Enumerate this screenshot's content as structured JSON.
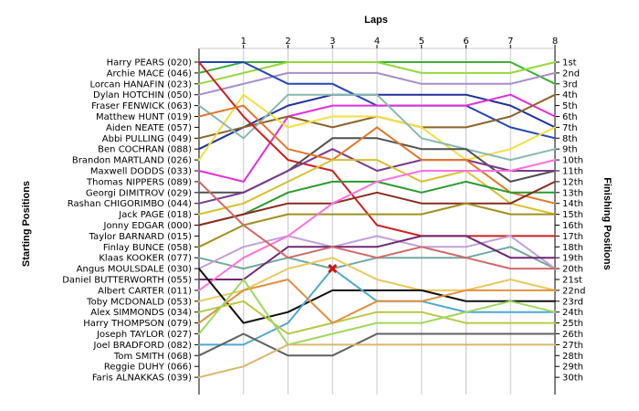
{
  "chart_data": {
    "type": "line",
    "title": "Laps",
    "ylabel_left": "Starting Positions",
    "ylabel_right": "Finishing Positions",
    "x": [
      0,
      1,
      2,
      3,
      4,
      5,
      6,
      7,
      8
    ],
    "x_tick_labels": [
      "1",
      "2",
      "3",
      "4",
      "5",
      "6",
      "7",
      "8"
    ],
    "starting_positions": [
      "Harry PEARS (020)",
      "Archie MACE (046)",
      "Lorcan HANAFIN (023)",
      "Dylan HOTCHIN (050)",
      "Fraser FENWICK (063)",
      "Matthew HUNT (019)",
      "Aiden NEATE (057)",
      "Abbi PULLING (049)",
      "Ben COCHRAN (088)",
      "Brandon MARTLAND (026)",
      "Maxwell DODDS (033)",
      "Thomas NIPPERS (089)",
      "Georgi DIMITROV (029)",
      "Rashan CHIGORIMBO (044)",
      "Jack PAGE (018)",
      "Jonny EDGAR (000)",
      "Taylor BARNARD (015)",
      "Finlay BUNCE (058)",
      "Klaas KOOKER (077)",
      "Angus MOULSDALE (030)",
      "Daniel BUTTERWORTH (055)",
      "Albert CARTER (011)",
      "Toby MCDONALD (053)",
      "Alex SIMMONDS (034)",
      "Harry THOMPSON (079)",
      "Joseph TAYLOR (027)",
      "Joel BRADFORD (082)",
      "Tom SMITH (068)",
      "Reggie DUHY (066)",
      "Faris ALNAKKAS (039)"
    ],
    "finishing_positions": [
      "1st",
      "2nd",
      "3rd",
      "4th",
      "5th",
      "6th",
      "7th",
      "8th",
      "9th",
      "10th",
      "11th",
      "12th",
      "13th",
      "14th",
      "15th",
      "16th",
      "17th",
      "18th",
      "19th",
      "20th",
      "21st",
      "22nd",
      "23rd",
      "24th",
      "25th",
      "26th",
      "27th",
      "28th",
      "29th",
      "30th"
    ],
    "yrange": [
      1,
      30
    ],
    "y_inverted": true,
    "grid": true,
    "retired_marker": {
      "x": 3,
      "y": 20,
      "color": "#d01010"
    },
    "series": [
      {
        "color": "#ffffff",
        "values": [
          0,
          0,
          0,
          0,
          0,
          0,
          0,
          0,
          0
        ]
      },
      {
        "color": "#3cb033",
        "values": [
          2,
          1,
          1,
          1,
          1,
          1,
          1,
          1,
          3
        ]
      },
      {
        "color": "#96d83c",
        "values": [
          3,
          2,
          1,
          1,
          1,
          2,
          2,
          2,
          1
        ]
      },
      {
        "color": "#a48ec8",
        "values": [
          4,
          3,
          2,
          2,
          2,
          3,
          3,
          3,
          2
        ]
      },
      {
        "color": "#2346b4",
        "values": [
          1,
          1,
          3,
          3,
          5,
          5,
          5,
          7,
          8
        ]
      },
      {
        "color": "#20309a",
        "values": [
          9,
          7,
          5,
          4,
          4,
          4,
          4,
          5,
          7
        ]
      },
      {
        "color": "#e030d8",
        "values": [
          11,
          12,
          6,
          5,
          5,
          5,
          5,
          4,
          6
        ]
      },
      {
        "color": "#8c6428",
        "values": [
          8,
          7,
          6,
          7,
          6,
          7,
          7,
          6,
          4
        ]
      },
      {
        "color": "#f0e040",
        "values": [
          10,
          4,
          7,
          6,
          6,
          7,
          10,
          9,
          7
        ]
      },
      {
        "color": "#88b8b0",
        "values": [
          5,
          8,
          4,
          4,
          4,
          8,
          9,
          10,
          9
        ]
      },
      {
        "color": "#cc2020",
        "values": [
          1,
          6,
          10,
          11,
          16,
          17,
          17,
          17,
          17
        ]
      },
      {
        "color": "#505050",
        "values": [
          13,
          13,
          11,
          8,
          8,
          9,
          9,
          12,
          11
        ]
      },
      {
        "color": "#7a3a8c",
        "values": [
          14,
          13,
          11,
          9,
          11,
          10,
          10,
          11,
          11
        ]
      },
      {
        "color": "#e0782a",
        "values": [
          6,
          5,
          9,
          10,
          7,
          10,
          10,
          13,
          14
        ]
      },
      {
        "color": "#d8c030",
        "values": [
          15,
          14,
          12,
          10,
          10,
          12,
          11,
          14,
          15
        ]
      },
      {
        "color": "#2a9a30",
        "values": [
          16,
          15,
          13,
          12,
          12,
          13,
          12,
          13,
          13
        ]
      },
      {
        "color": "#8a2a20",
        "values": [
          16,
          15,
          14,
          14,
          13,
          14,
          14,
          14,
          12
        ]
      },
      {
        "color": "#a09020",
        "values": [
          18,
          16,
          15,
          15,
          15,
          15,
          14,
          15,
          15
        ]
      },
      {
        "color": "#70a8a0",
        "values": [
          19,
          20,
          19,
          20,
          19,
          19,
          19,
          18,
          20
        ]
      },
      {
        "color": "#c0a0d8",
        "values": [
          20,
          18,
          17,
          18,
          17,
          18,
          18,
          17,
          20
        ]
      },
      {
        "color": "#702870",
        "values": [
          21,
          21,
          18,
          18,
          18,
          17,
          17,
          19,
          19
        ]
      },
      {
        "color": "#ff70e0",
        "values": [
          22,
          19,
          17,
          14,
          12,
          11,
          11,
          11,
          10
        ]
      },
      {
        "color": "#d06868",
        "values": [
          12,
          16,
          19,
          18,
          19,
          18,
          19,
          20,
          20
        ]
      },
      {
        "color": "#e8c860",
        "values": [
          23,
          22,
          20,
          19,
          21,
          22,
          22,
          21,
          22
        ]
      },
      {
        "color": "#101010",
        "values": [
          20,
          25,
          24,
          22,
          22,
          22,
          23,
          23,
          23
        ]
      },
      {
        "color": "#4fa8d0",
        "values": [
          27,
          27,
          25,
          20,
          23,
          23,
          24,
          24,
          24
        ]
      },
      {
        "color": "#b8c848",
        "values": [
          24,
          23,
          26,
          25,
          24,
          24,
          25,
          25,
          25
        ]
      },
      {
        "color": "#e09040",
        "values": [
          25,
          22,
          21,
          25,
          23,
          23,
          22,
          22,
          22
        ]
      },
      {
        "color": "#606060",
        "values": [
          28,
          26,
          28,
          28,
          26,
          26,
          26,
          26,
          26
        ]
      },
      {
        "color": "#a0d860",
        "values": [
          26,
          21,
          27,
          26,
          25,
          25,
          24,
          23,
          24
        ]
      },
      {
        "color": "#d8b870",
        "values": [
          30,
          29,
          27,
          27,
          27,
          27,
          27,
          27,
          27
        ]
      }
    ]
  }
}
